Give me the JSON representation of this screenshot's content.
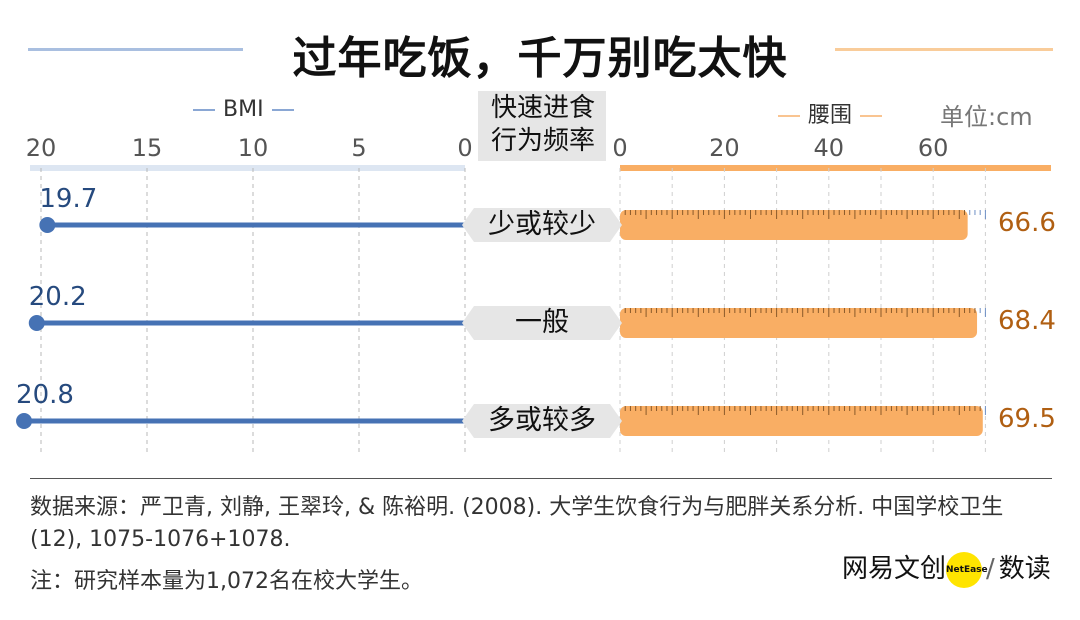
{
  "title": "过年吃饭，千万别吃太快",
  "legend_left": "BMI",
  "legend_right": "腰围",
  "center_header": [
    "快速进食",
    "行为频率"
  ],
  "unit_label": "单位:cm",
  "colors": {
    "bmi": "#4672b4",
    "bmi_text": "#264a7e",
    "waist": "#f9ae64",
    "waist_text": "#b05f12",
    "label_bg": "#e6e6e6"
  },
  "chart_data": {
    "type": "bar",
    "categories": [
      "少或较少",
      "一般",
      "多或较多"
    ],
    "series": [
      {
        "name": "BMI",
        "values": [
          19.7,
          20.2,
          20.8
        ],
        "axis_ticks": [
          "20",
          "15",
          "10",
          "5",
          "0"
        ],
        "xlim": [
          20,
          0
        ]
      },
      {
        "name": "腰围",
        "values": [
          66.6,
          68.4,
          69.5
        ],
        "axis_ticks": [
          "0",
          "20",
          "40",
          "60"
        ],
        "xlim": [
          0,
          70
        ]
      }
    ],
    "value_labels_bmi": [
      "19.7",
      "20.2",
      "20.8"
    ],
    "value_labels_waist": [
      "66.6",
      "68.4",
      "69.5"
    ]
  },
  "footer": {
    "source": "数据来源：严卫青, 刘静, 王翠玲, & 陈裕明. (2008). 大学生饮食行为与肥胖关系分析. 中国学校卫生(12), 1075-1076+1078.",
    "note": "注：研究样本量为1,072名在校大学生。",
    "brand_left": "网易文创",
    "brand_logo": "NetEase",
    "brand_right": "数读"
  }
}
